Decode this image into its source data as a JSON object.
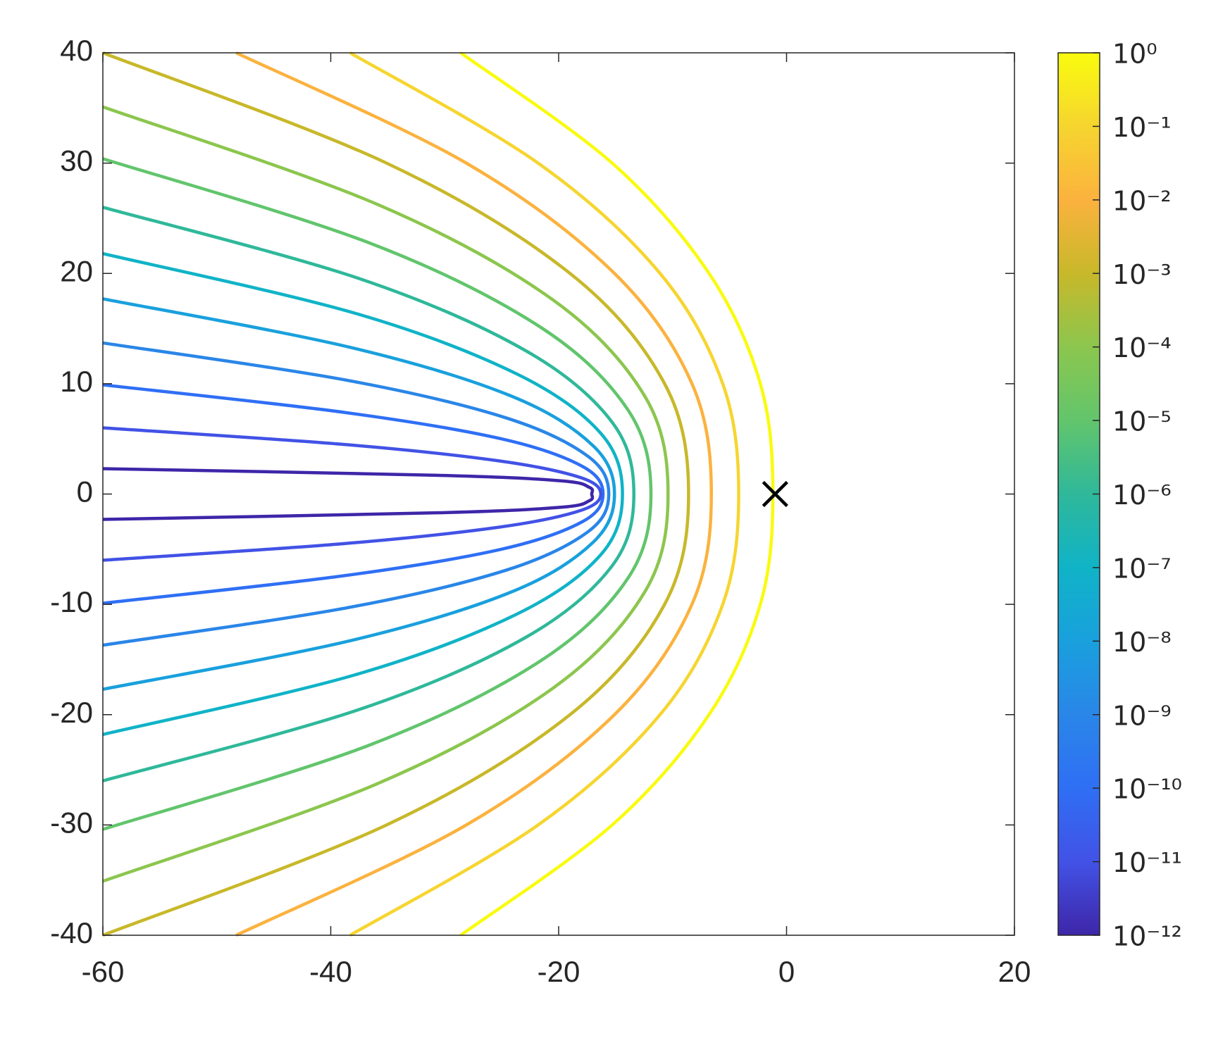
{
  "chart_data": {
    "type": "contour",
    "xlim": [
      -60,
      20
    ],
    "ylim": [
      -40,
      40
    ],
    "xticks": [
      -60,
      -40,
      -20,
      0,
      20
    ],
    "yticks": [
      -40,
      -30,
      -20,
      -10,
      0,
      10,
      20,
      30,
      40
    ],
    "colorbar": {
      "scale": "log",
      "zlim": [
        1e-12,
        1
      ],
      "colormap": [
        "#3e26a8",
        "#4252e6",
        "#2f6ff5",
        "#2a86e8",
        "#19a0dd",
        "#10b3c7",
        "#2fb89a",
        "#62c56c",
        "#8cc64e",
        "#c8b82a",
        "#fbb23e",
        "#f6d52f",
        "#f9fb0e"
      ],
      "ticks": [
        {
          "value": 1e-12,
          "label": "10⁻¹²"
        },
        {
          "value": 1e-11,
          "label": "10⁻¹¹"
        },
        {
          "value": 1e-10,
          "label": "10⁻¹⁰"
        },
        {
          "value": 1e-09,
          "label": "10⁻⁹"
        },
        {
          "value": 1e-08,
          "label": "10⁻⁸"
        },
        {
          "value": 1e-07,
          "label": "10⁻⁷"
        },
        {
          "value": 1e-06,
          "label": "10⁻⁶"
        },
        {
          "value": 1e-05,
          "label": "10⁻⁵"
        },
        {
          "value": 0.0001,
          "label": "10⁻⁴"
        },
        {
          "value": 0.001,
          "label": "10⁻³"
        },
        {
          "value": 0.01,
          "label": "10⁻²"
        },
        {
          "value": 0.1,
          "label": "10⁻¹"
        },
        {
          "value": 1,
          "label": "10⁰"
        }
      ]
    },
    "contours": [
      {
        "level": 1,
        "x": [
          -28.6,
          -15.3,
          -6.8,
          -2.3,
          -1.2,
          -2.3,
          -6.8,
          -15.3,
          -28.6
        ],
        "y": [
          40,
          30,
          20,
          10,
          0,
          -10,
          -20,
          -30,
          -40
        ]
      },
      {
        "level": 0.1,
        "x": [
          -38.3,
          -21.8,
          -11.1,
          -5.6,
          -4.2,
          -5.6,
          -11.1,
          -21.8,
          -38.3
        ],
        "y": [
          40,
          30,
          20,
          10,
          0,
          -10,
          -20,
          -30,
          -40
        ]
      },
      {
        "level": 0.01,
        "x": [
          -48.3,
          -28.1,
          -15.1,
          -8.3,
          -6.6,
          -8.3,
          -15.1,
          -28.1,
          -48.3
        ],
        "y": [
          40,
          30,
          20,
          10,
          0,
          -10,
          -20,
          -30,
          -40
        ]
      },
      {
        "level": 0.001,
        "x": [
          -60,
          -35.1,
          -19.0,
          -10.7,
          -8.6,
          -10.7,
          -19.0,
          -35.1,
          -60
        ],
        "y": [
          40,
          30,
          20,
          10,
          0,
          -10,
          -20,
          -30,
          -40
        ]
      },
      {
        "level": 0.0001,
        "x": [
          -60,
          -36.0,
          -20.5,
          -12.4,
          -10.4,
          -12.4,
          -20.5,
          -36.0,
          -60
        ],
        "y": [
          35.1,
          26.3,
          17.6,
          8.8,
          0,
          -8.8,
          -17.6,
          -26.3,
          -35.1
        ]
      },
      {
        "level": 1e-05,
        "x": [
          -60,
          -36.7,
          -21.7,
          -13.9,
          -11.9,
          -13.9,
          -21.7,
          -36.7,
          -60
        ],
        "y": [
          30.4,
          22.8,
          15.2,
          7.6,
          0,
          -7.6,
          -15.2,
          -22.8,
          -30.4
        ]
      },
      {
        "level": 1e-06,
        "x": [
          -60,
          -37.4,
          -22.9,
          -15.3,
          -13.4,
          -15.3,
          -22.9,
          -37.4,
          -60
        ],
        "y": [
          26.0,
          19.5,
          13.0,
          6.5,
          0,
          -6.5,
          -13.0,
          -19.5,
          -26.0
        ]
      },
      {
        "level": 1e-07,
        "x": [
          -60,
          -37.9,
          -23.7,
          -16.3,
          -14.4,
          -16.3,
          -23.7,
          -37.9,
          -60
        ],
        "y": [
          21.8,
          16.4,
          10.9,
          5.5,
          0,
          -5.5,
          -10.9,
          -16.4,
          -21.8
        ]
      },
      {
        "level": 1e-08,
        "x": [
          -60,
          -38.3,
          -24.2,
          -17.0,
          -15.1,
          -17.0,
          -24.2,
          -38.3,
          -60
        ],
        "y": [
          17.7,
          13.3,
          8.9,
          4.4,
          0,
          -4.4,
          -8.9,
          -13.3,
          -17.7
        ]
      },
      {
        "level": 1e-09,
        "x": [
          -60,
          -38.5,
          -24.6,
          -17.4,
          -15.6,
          -17.4,
          -24.6,
          -38.5,
          -60
        ],
        "y": [
          13.7,
          10.3,
          6.9,
          3.4,
          0,
          -3.4,
          -6.9,
          -10.3,
          -13.7
        ]
      },
      {
        "level": 1e-10,
        "x": [
          -60,
          -38.8,
          -25.0,
          -17.9,
          -16.1,
          -17.9,
          -25.0,
          -38.8,
          -60
        ],
        "y": [
          9.9,
          7.4,
          5.0,
          2.5,
          0,
          -2.5,
          -5.0,
          -7.4,
          -9.9
        ]
      },
      {
        "level": 1e-11,
        "x": [
          -60,
          -38.9,
          -25.2,
          -18.1,
          -16.3,
          -18.1,
          -25.2,
          -38.9,
          -60
        ],
        "y": [
          6.0,
          4.5,
          3.0,
          1.5,
          0,
          -1.5,
          -3.0,
          -4.5,
          -6.0
        ]
      },
      {
        "level": 1e-12,
        "x": [
          -60,
          -30.7,
          -19.8,
          -17.3,
          -17.1,
          -17.3,
          -19.8,
          -30.7,
          -60
        ],
        "y": [
          2.3,
          1.7,
          1.2,
          0.6,
          0,
          -0.6,
          -1.2,
          -1.7,
          -2.3
        ]
      }
    ],
    "marker": {
      "x": -1,
      "y": 0,
      "symbol": "x",
      "color": "#000000"
    }
  }
}
